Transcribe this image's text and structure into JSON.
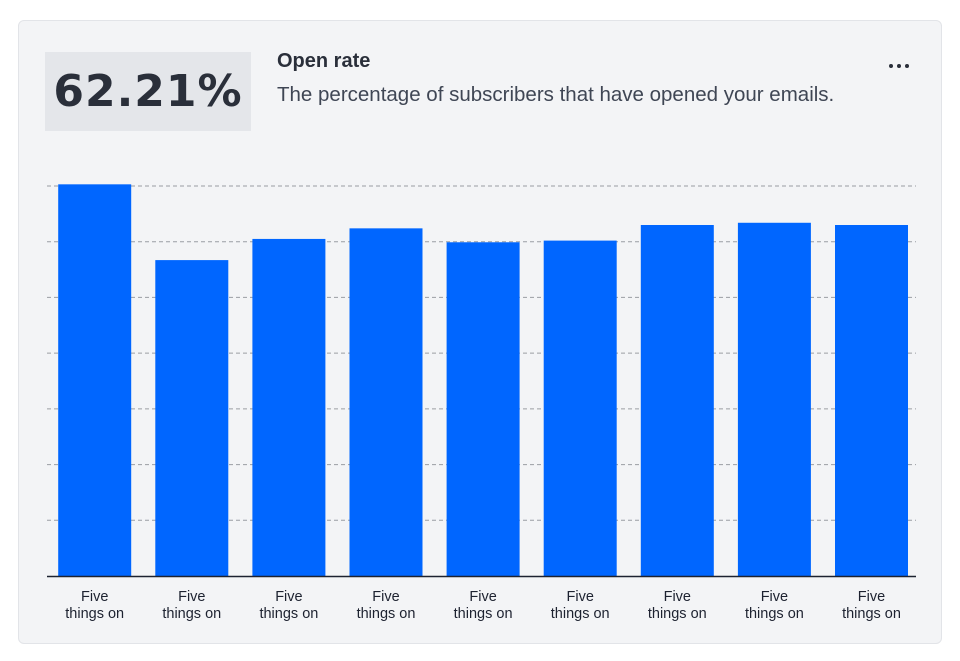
{
  "card": {
    "metric_value": "62.21%",
    "title": "Open rate",
    "description": "The percentage of subscribers that have opened your emails.",
    "more_icon": "more-horizontal-icon"
  },
  "colors": {
    "bar": "#0066ff",
    "grid": "#9a9da3",
    "axis": "#1d2230",
    "card_bg": "#f3f4f6",
    "metric_bg": "#e4e6ea"
  },
  "chart_data": {
    "type": "bar",
    "title": "",
    "xlabel": "",
    "ylabel": "",
    "grid": true,
    "ylim": [
      0,
      7
    ],
    "categories": [
      "Five things on",
      "Five things on",
      "Five things on",
      "Five things on",
      "Five things on",
      "Five things on",
      "Five things on",
      "Five things on",
      "Five things on"
    ],
    "values": [
      7.03,
      5.67,
      6.05,
      6.24,
      5.99,
      6.02,
      6.3,
      6.34,
      6.3
    ]
  }
}
